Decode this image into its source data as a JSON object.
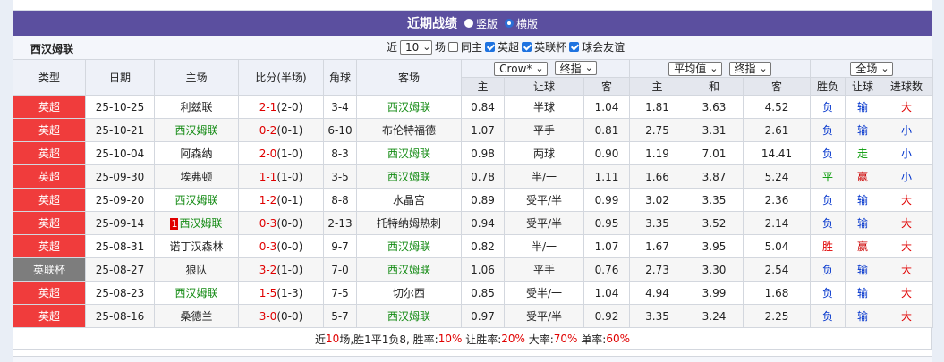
{
  "header": {
    "title": "近期战绩",
    "options": [
      "竖版",
      "横版"
    ],
    "selected": 1
  },
  "team": "西汉姆联",
  "filters": {
    "prefix": "近",
    "count": "10",
    "suffix": "场",
    "checkboxes": [
      {
        "label": "同主",
        "checked": false
      },
      {
        "label": "英超",
        "checked": true
      },
      {
        "label": "英联杯",
        "checked": true
      },
      {
        "label": "球会友谊",
        "checked": true
      }
    ]
  },
  "columns": [
    "类型",
    "日期",
    "主场",
    "比分(半场)",
    "角球",
    "客场"
  ],
  "odds_groups": [
    {
      "selects": [
        "Crow*",
        "终指"
      ],
      "columns": [
        "主",
        "让球",
        "客"
      ]
    },
    {
      "selects": [
        "平均值",
        "终指"
      ],
      "columns": [
        "主",
        "和",
        "客"
      ]
    },
    {
      "selects": [
        "全场"
      ],
      "columns": [
        "胜负",
        "让球",
        "进球数"
      ]
    }
  ],
  "type_colors": {
    "英超": "#f03c3c",
    "英联杯": "#7d7d7d"
  },
  "result_colors": {
    "负": "#0033cc",
    "胜": "#e00000",
    "平": "#009900",
    "输": "#0033cc",
    "赢": "#cc0000",
    "走": "#009900",
    "大": "#e00000",
    "小": "#0033cc"
  },
  "rows": [
    {
      "type": "英超",
      "date": "25-10-25",
      "home": "利兹联",
      "score": "2-1",
      "half": "(2-0)",
      "corners": "3-4",
      "away": "西汉姆联",
      "odds": [
        [
          "0.84",
          "半球",
          "1.04"
        ],
        [
          "1.81",
          "3.63",
          "4.52"
        ],
        [
          "负",
          "输",
          "大"
        ]
      ]
    },
    {
      "type": "英超",
      "date": "25-10-21",
      "home": "西汉姆联",
      "score": "0-2",
      "half": "(0-1)",
      "corners": "6-10",
      "away": "布伦特福德",
      "odds": [
        [
          "1.07",
          "平手",
          "0.81"
        ],
        [
          "2.75",
          "3.31",
          "2.61"
        ],
        [
          "负",
          "输",
          "小"
        ]
      ]
    },
    {
      "type": "英超",
      "date": "25-10-04",
      "home": "阿森纳",
      "score": "2-0",
      "half": "(1-0)",
      "corners": "8-3",
      "away": "西汉姆联",
      "odds": [
        [
          "0.98",
          "两球",
          "0.90"
        ],
        [
          "1.19",
          "7.01",
          "14.41"
        ],
        [
          "负",
          "走",
          "小"
        ]
      ]
    },
    {
      "type": "英超",
      "date": "25-09-30",
      "home": "埃弗顿",
      "score": "1-1",
      "half": "(1-0)",
      "corners": "3-5",
      "away": "西汉姆联",
      "odds": [
        [
          "0.78",
          "半/一",
          "1.11"
        ],
        [
          "1.66",
          "3.87",
          "5.24"
        ],
        [
          "平",
          "赢",
          "小"
        ]
      ]
    },
    {
      "type": "英超",
      "date": "25-09-20",
      "home": "西汉姆联",
      "score": "1-2",
      "half": "(0-1)",
      "corners": "8-8",
      "away": "水晶宫",
      "odds": [
        [
          "0.89",
          "受平/半",
          "0.99"
        ],
        [
          "3.02",
          "3.35",
          "2.36"
        ],
        [
          "负",
          "输",
          "大"
        ]
      ]
    },
    {
      "type": "英超",
      "date": "25-09-14",
      "home_card": "1",
      "home": "西汉姆联",
      "score": "0-3",
      "half": "(0-0)",
      "corners": "2-13",
      "away": "托特纳姆热刺",
      "odds": [
        [
          "0.94",
          "受平/半",
          "0.95"
        ],
        [
          "3.35",
          "3.52",
          "2.14"
        ],
        [
          "负",
          "输",
          "大"
        ]
      ]
    },
    {
      "type": "英超",
      "date": "25-08-31",
      "home": "诺丁汉森林",
      "score": "0-3",
      "half": "(0-0)",
      "corners": "9-7",
      "away": "西汉姆联",
      "odds": [
        [
          "0.82",
          "半/一",
          "1.07"
        ],
        [
          "1.67",
          "3.95",
          "5.04"
        ],
        [
          "胜",
          "赢",
          "大"
        ]
      ]
    },
    {
      "type": "英联杯",
      "date": "25-08-27",
      "home": "狼队",
      "score": "3-2",
      "half": "(1-0)",
      "corners": "7-0",
      "away": "西汉姆联",
      "odds": [
        [
          "1.06",
          "平手",
          "0.76"
        ],
        [
          "2.73",
          "3.30",
          "2.54"
        ],
        [
          "负",
          "输",
          "大"
        ]
      ]
    },
    {
      "type": "英超",
      "date": "25-08-23",
      "home": "西汉姆联",
      "score": "1-5",
      "half": "(1-3)",
      "corners": "7-5",
      "away": "切尔西",
      "odds": [
        [
          "0.85",
          "受半/一",
          "1.04"
        ],
        [
          "4.94",
          "3.99",
          "1.68"
        ],
        [
          "负",
          "输",
          "大"
        ]
      ]
    },
    {
      "type": "英超",
      "date": "25-08-16",
      "home": "桑德兰",
      "score": "3-0",
      "half": "(0-0)",
      "corners": "5-7",
      "away": "西汉姆联",
      "odds": [
        [
          "0.97",
          "受平/半",
          "0.92"
        ],
        [
          "3.35",
          "3.24",
          "2.25"
        ],
        [
          "负",
          "输",
          "大"
        ]
      ]
    }
  ],
  "summary": [
    {
      "text": "近"
    },
    {
      "text": "10",
      "red": true
    },
    {
      "text": "场,胜1平1负8, 胜率:"
    },
    {
      "text": "10%",
      "red": true
    },
    {
      "text": " 让胜率:"
    },
    {
      "text": "20%",
      "red": true
    },
    {
      "text": " 大率:"
    },
    {
      "text": "70%",
      "red": true
    },
    {
      "text": " 单率:"
    },
    {
      "text": "60%",
      "red": true
    }
  ]
}
